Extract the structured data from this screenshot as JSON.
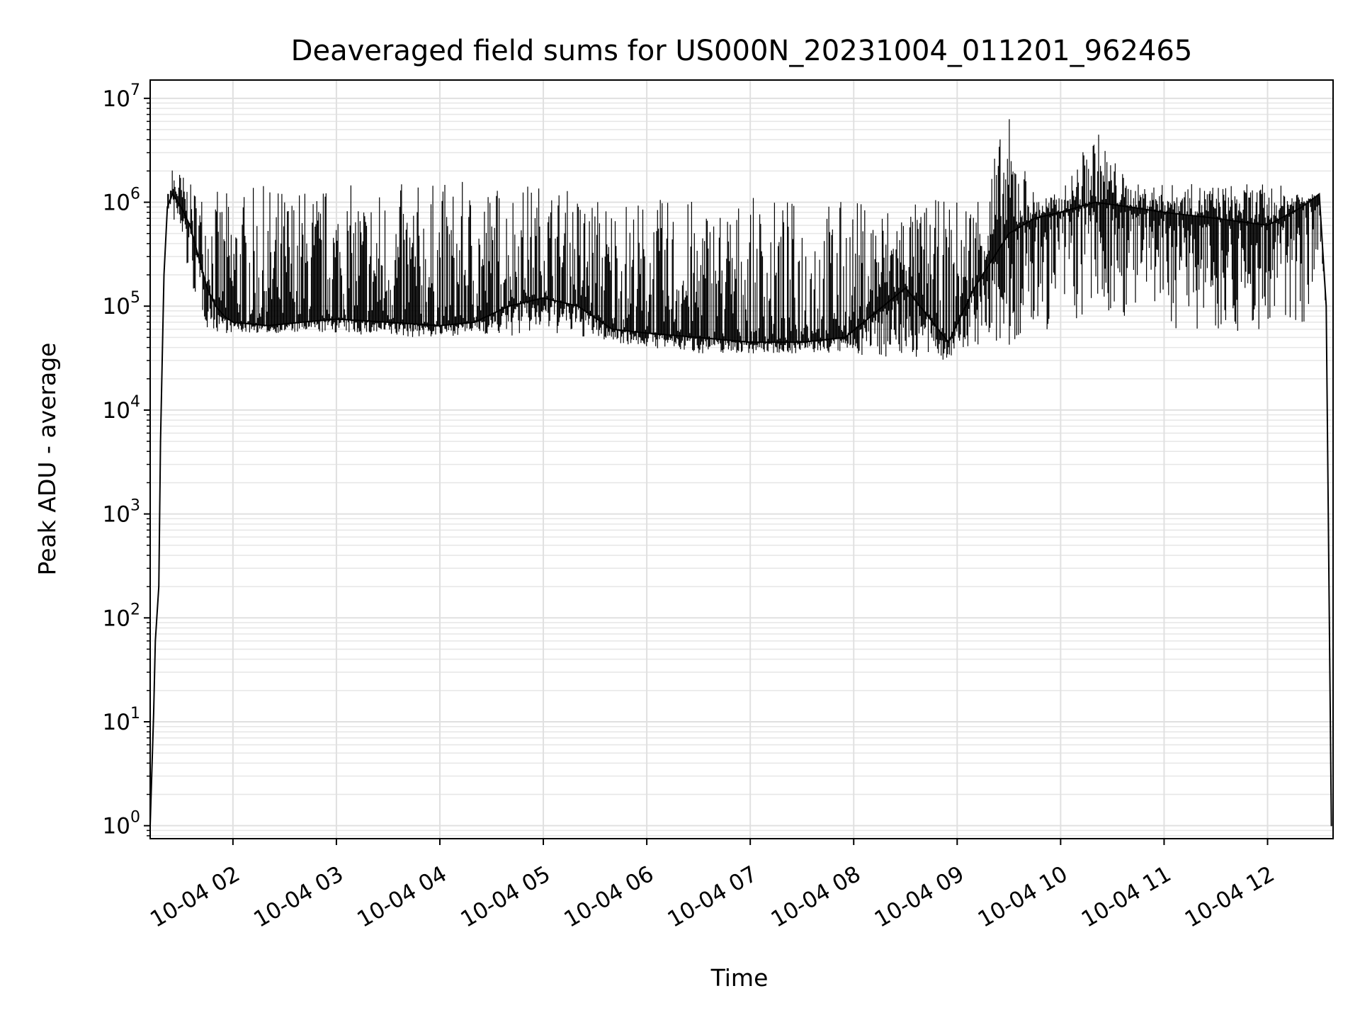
{
  "chart_data": {
    "type": "line",
    "title": "Deaveraged field sums for US000N_20231004_011201_962465",
    "xlabel": "Time",
    "ylabel": "Peak ADU - average",
    "yscale": "log",
    "ylim": [
      0.75,
      15000000
    ],
    "xlim": [
      "2023-10-04 01:12",
      "2023-10-04 12:38"
    ],
    "grid": true,
    "legend": "none",
    "line_color": "#000000",
    "x_ticks": [
      {
        "value": "2023-10-04 02:00",
        "label": "10-04 02"
      },
      {
        "value": "2023-10-04 03:00",
        "label": "10-04 03"
      },
      {
        "value": "2023-10-04 04:00",
        "label": "10-04 04"
      },
      {
        "value": "2023-10-04 05:00",
        "label": "10-04 05"
      },
      {
        "value": "2023-10-04 06:00",
        "label": "10-04 06"
      },
      {
        "value": "2023-10-04 07:00",
        "label": "10-04 07"
      },
      {
        "value": "2023-10-04 08:00",
        "label": "10-04 08"
      },
      {
        "value": "2023-10-04 09:00",
        "label": "10-04 09"
      },
      {
        "value": "2023-10-04 10:00",
        "label": "10-04 10"
      },
      {
        "value": "2023-10-04 11:00",
        "label": "10-04 11"
      },
      {
        "value": "2023-10-04 12:00",
        "label": "10-04 12"
      }
    ],
    "y_ticks": [
      {
        "value": 1,
        "base": "10",
        "exp": "0"
      },
      {
        "value": 10,
        "base": "10",
        "exp": "1"
      },
      {
        "value": 100,
        "base": "10",
        "exp": "2"
      },
      {
        "value": 1000,
        "base": "10",
        "exp": "3"
      },
      {
        "value": 10000,
        "base": "10",
        "exp": "4"
      },
      {
        "value": 100000,
        "base": "10",
        "exp": "5"
      },
      {
        "value": 1000000,
        "base": "10",
        "exp": "6"
      },
      {
        "value": 10000000,
        "base": "10",
        "exp": "7"
      }
    ],
    "series": [
      {
        "x": [
          "2023-10-04 01:12",
          "2023-10-04 01:14",
          "2023-10-04 01:15",
          "2023-10-04 01:17",
          "2023-10-04 01:18",
          "2023-10-04 01:20",
          "2023-10-04 01:22",
          "2023-10-04 01:25",
          "2023-10-04 01:30",
          "2023-10-04 01:35",
          "2023-10-04 01:40",
          "2023-10-04 01:45",
          "2023-10-04 01:50",
          "2023-10-04 01:55",
          "2023-10-04 02:00",
          "2023-10-04 02:20",
          "2023-10-04 02:40",
          "2023-10-04 03:00",
          "2023-10-04 03:30",
          "2023-10-04 04:00",
          "2023-10-04 04:20",
          "2023-10-04 04:40",
          "2023-10-04 05:00",
          "2023-10-04 05:20",
          "2023-10-04 05:40",
          "2023-10-04 06:00",
          "2023-10-04 06:30",
          "2023-10-04 07:00",
          "2023-10-04 07:30",
          "2023-10-04 07:55",
          "2023-10-04 08:30",
          "2023-10-04 08:55",
          "2023-10-04 09:10",
          "2023-10-04 09:30",
          "2023-10-04 09:45",
          "2023-10-04 10:00",
          "2023-10-04 10:20",
          "2023-10-04 10:40",
          "2023-10-04 11:00",
          "2023-10-04 11:30",
          "2023-10-04 12:00",
          "2023-10-04 12:20",
          "2023-10-04 12:30",
          "2023-10-04 12:34",
          "2023-10-04 12:37"
        ],
        "y": [
          1,
          12,
          60,
          200,
          5000,
          200000,
          900000,
          1200000,
          900000,
          600000,
          300000,
          150000,
          100000,
          80000,
          70000,
          65000,
          70000,
          75000,
          70000,
          65000,
          70000,
          100000,
          120000,
          100000,
          60000,
          55000,
          50000,
          45000,
          45000,
          50000,
          150000,
          45000,
          150000,
          500000,
          700000,
          800000,
          1000000,
          900000,
          800000,
          700000,
          600000,
          900000,
          1200000,
          100000,
          1
        ],
        "y_high": [
          1,
          12,
          60,
          200,
          5000,
          200000,
          1200000,
          2300000,
          2000000,
          1500000,
          1400000,
          1400000,
          1300000,
          1300000,
          1300000,
          1500000,
          1500000,
          1500000,
          1500000,
          1600000,
          1600000,
          1600000,
          1600000,
          1300000,
          1200000,
          1100000,
          1100000,
          1100000,
          1100000,
          1100000,
          1000000,
          1100000,
          1300000,
          6800000,
          1200000,
          1200000,
          5500000,
          1500000,
          1500000,
          1500000,
          1500000,
          1400000,
          1200000,
          100000,
          1
        ],
        "y_low": [
          1,
          12,
          60,
          200,
          5000,
          200000,
          900000,
          700000,
          400000,
          150000,
          100000,
          60000,
          55000,
          55000,
          55000,
          55000,
          55000,
          55000,
          50000,
          50000,
          55000,
          50000,
          55000,
          50000,
          45000,
          40000,
          35000,
          35000,
          35000,
          35000,
          30000,
          30000,
          40000,
          30000,
          50000,
          60000,
          70000,
          80000,
          60000,
          60000,
          50000,
          60000,
          200000,
          100000,
          1
        ]
      }
    ]
  }
}
